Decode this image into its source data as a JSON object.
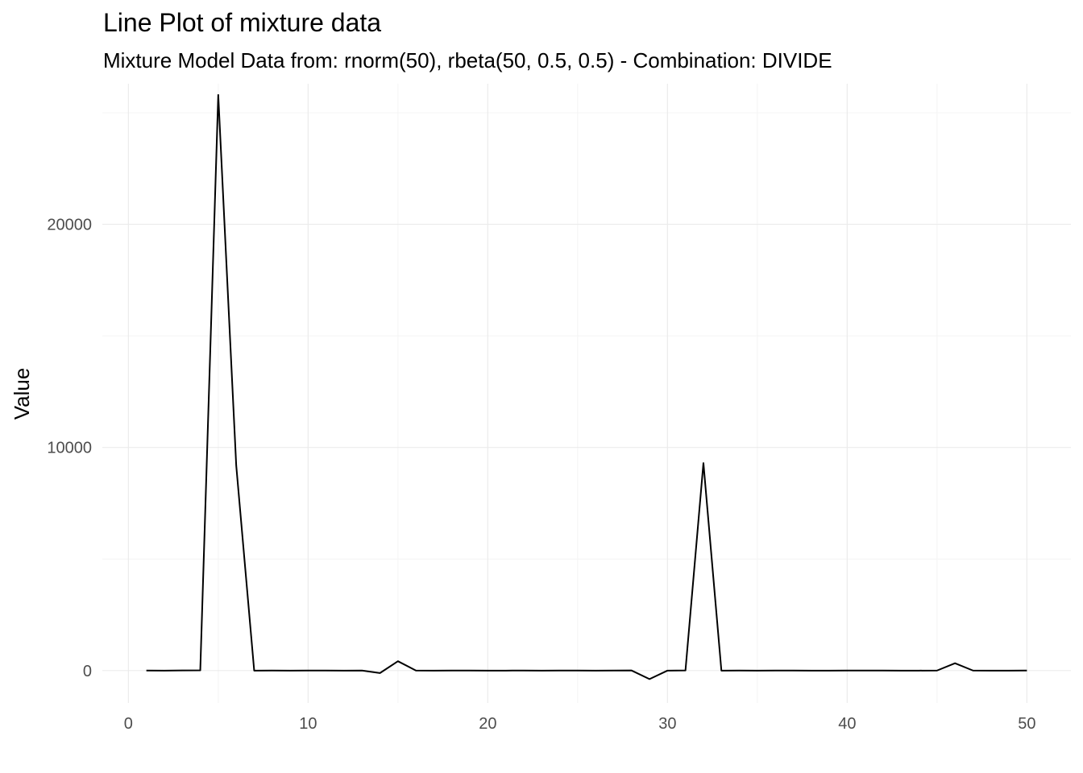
{
  "chart_data": {
    "type": "line",
    "title": "Line Plot of mixture data",
    "subtitle": "Mixture Model Data from: rnorm(50), rbeta(50, 0.5, 0.5) - Combination: DIVIDE",
    "xlabel": "",
    "ylabel": "Value",
    "xlim": [
      -1.45,
      52.45
    ],
    "ylim": [
      -1450,
      26300
    ],
    "x_ticks": [
      0,
      10,
      20,
      30,
      40,
      50
    ],
    "y_ticks": [
      0,
      10000,
      20000
    ],
    "x_tick_labels": [
      "0",
      "10",
      "20",
      "30",
      "40",
      "50"
    ],
    "y_tick_labels": [
      "0",
      "10000",
      "20000"
    ],
    "grid": true,
    "legend": "none",
    "colors": {
      "line": "#000000",
      "grid_major": "#ebebeb",
      "grid_minor": "#f4f4f4",
      "tick_text": "#4d4d4d"
    },
    "series": [
      {
        "x": [
          1,
          2,
          3,
          4,
          5,
          6,
          7,
          8,
          9,
          10,
          11,
          12,
          13,
          14,
          15,
          16,
          17,
          18,
          19,
          20,
          21,
          22,
          23,
          24,
          25,
          26,
          27,
          28,
          29,
          30,
          31,
          32,
          33,
          34,
          35,
          36,
          37,
          38,
          38,
          39,
          40,
          41,
          42,
          43,
          44,
          45,
          46,
          47,
          48,
          49,
          50
        ],
        "values": [
          3,
          -2,
          5,
          12,
          25800,
          9200,
          0,
          2,
          -3,
          4,
          1,
          -1,
          2,
          -110,
          420,
          2,
          -1,
          3,
          1,
          -2,
          0,
          4,
          -1,
          2,
          1,
          -3,
          2,
          5,
          -380,
          0,
          6,
          9300,
          0,
          1,
          -2,
          3,
          1,
          0,
          0,
          -1,
          2,
          4,
          1,
          -3,
          0,
          2,
          330,
          2,
          -1,
          0,
          1
        ]
      }
    ]
  }
}
